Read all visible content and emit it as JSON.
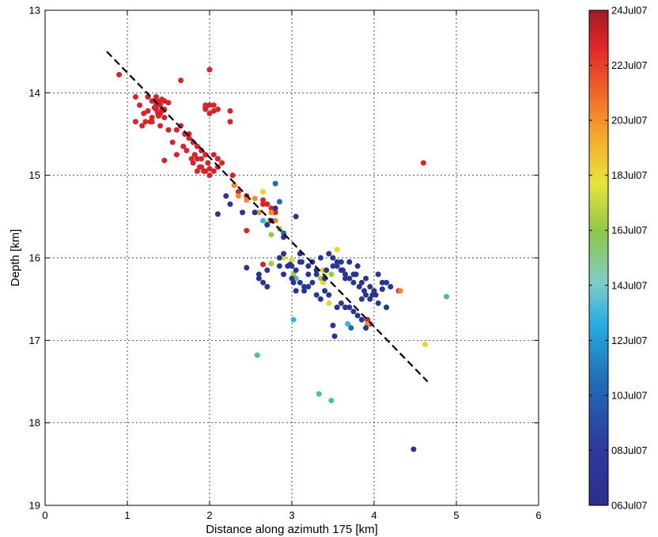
{
  "chart_data": {
    "type": "scatter",
    "xlabel": "Distance along azimuth 175  [km]",
    "ylabel": "Depth [km]",
    "xlim": [
      0,
      6
    ],
    "ylim": [
      13,
      19
    ],
    "y_reversed": true,
    "xticks": [
      "0",
      "1",
      "2",
      "3",
      "4",
      "5",
      "6"
    ],
    "yticks": [
      "13",
      "14",
      "15",
      "16",
      "17",
      "18",
      "19"
    ],
    "grid": true,
    "trend_line": {
      "style": "dashed",
      "color": "#000000",
      "x": [
        0.75,
        4.65
      ],
      "y": [
        13.5,
        17.5
      ]
    },
    "colorbar": {
      "placement": "right",
      "labels": [
        "06Jul07",
        "08Jul07",
        "10Jul07",
        "12Jul07",
        "14Jul07",
        "16Jul07",
        "18Jul07",
        "20Jul07",
        "22Jul07",
        "24Jul07"
      ],
      "colormap": "jet"
    },
    "series": [
      {
        "x": [
          0.9,
          1.1,
          1.25,
          1.15,
          1.2,
          1.3,
          1.35,
          1.4,
          1.45,
          1.35,
          1.3,
          1.4,
          1.45,
          1.5,
          1.38,
          1.42,
          1.28,
          1.22,
          1.1,
          1.18,
          1.3,
          1.4,
          1.5,
          1.45,
          1.35,
          1.6,
          1.65,
          1.7,
          1.75,
          1.8,
          1.75,
          1.68,
          1.55,
          1.6,
          1.72,
          1.85,
          1.9,
          1.95,
          1.85,
          1.8,
          1.9,
          1.98,
          1.7,
          1.95,
          2.0,
          2.05,
          1.95,
          2.1,
          2.0,
          1.88,
          2.05,
          2.1,
          1.93,
          1.9,
          1.82,
          1.78,
          1.85,
          2.0,
          1.98,
          2.1,
          2.05,
          2.1,
          2.15,
          2.0,
          1.95,
          1.65,
          1.45,
          2.0,
          1.95,
          2.05,
          2.25,
          2.3,
          4.6,
          2.28,
          2.35,
          2.25,
          2.7,
          2.45,
          2.55,
          2.65,
          2.75,
          2.8,
          2.65,
          2.45,
          2.65,
          3.95,
          4.3,
          3.92,
          1.4,
          1.42,
          1.37,
          1.33,
          1.25,
          1.35,
          1.42
        ],
        "y": [
          13.78,
          14.05,
          14.05,
          14.15,
          14.25,
          14.1,
          14.2,
          14.15,
          14.1,
          14.05,
          14.3,
          14.25,
          14.2,
          14.12,
          14.28,
          14.22,
          14.35,
          14.35,
          14.35,
          14.4,
          14.35,
          14.4,
          14.45,
          14.3,
          14.1,
          14.45,
          14.4,
          14.5,
          14.55,
          14.6,
          14.5,
          14.65,
          14.6,
          14.75,
          14.7,
          14.65,
          14.7,
          14.75,
          14.8,
          14.85,
          14.9,
          14.85,
          14.5,
          14.2,
          14.15,
          14.15,
          14.15,
          14.2,
          14.25,
          14.9,
          14.95,
          14.8,
          14.95,
          14.8,
          14.75,
          14.8,
          14.95,
          15.0,
          14.85,
          14.9,
          14.75,
          14.8,
          14.85,
          14.92,
          14.95,
          13.85,
          14.82,
          13.72,
          14.18,
          14.22,
          14.35,
          15.12,
          14.85,
          15.0,
          15.2,
          14.22,
          15.35,
          15.25,
          15.45,
          15.3,
          15.4,
          15.45,
          15.35,
          15.67,
          16.08,
          16.8,
          16.4,
          16.75,
          14.1,
          14.2,
          14.25,
          14.18,
          14.22,
          14.15,
          14.08
        ],
        "color": "#d7232a"
      },
      {
        "x": [
          2.3,
          2.35,
          2.45,
          2.55,
          2.6,
          2.75,
          2.8,
          4.32,
          3.92
        ],
        "y": [
          15.12,
          15.25,
          15.3,
          15.28,
          15.45,
          15.45,
          15.55,
          16.4,
          16.8
        ],
        "color": "#f08b2a"
      },
      {
        "x": [
          2.65,
          2.72,
          2.85,
          3.55,
          3.38,
          3.45,
          4.62,
          3.38,
          3.4,
          2.9,
          3.0
        ],
        "y": [
          15.2,
          15.55,
          15.65,
          15.9,
          16.15,
          16.55,
          17.05,
          16.3,
          16.22,
          16.0,
          16.03
        ],
        "color": "#f2d12a"
      },
      {
        "x": [
          2.75,
          2.85,
          2.75,
          3.35,
          3.48,
          3.02
        ],
        "y": [
          15.72,
          15.65,
          16.07,
          16.25,
          16.2,
          16.2
        ],
        "color": "#9ccb3c"
      },
      {
        "x": [
          2.58,
          3.33,
          3.48,
          4.88,
          3.05
        ],
        "y": [
          17.18,
          17.65,
          17.73,
          16.47,
          16.25
        ],
        "color": "#4fbf9f"
      },
      {
        "x": [
          2.65,
          3.02,
          3.68
        ],
        "y": [
          15.55,
          16.75,
          16.8
        ],
        "color": "#34b4e8"
      },
      {
        "x": [
          2.8,
          2.85,
          2.9,
          3.72
        ],
        "y": [
          15.1,
          15.32,
          15.7,
          16.85
        ],
        "color": "#1e6cb4"
      },
      {
        "x": [
          2.1,
          2.2,
          2.25,
          2.4,
          2.55,
          2.7,
          2.75,
          2.8,
          2.9,
          3.05,
          3.1,
          3.2,
          3.3,
          3.35,
          3.45,
          3.5,
          3.55,
          3.6,
          3.65,
          3.7,
          3.75,
          3.8,
          3.85,
          3.9,
          3.95,
          4.0,
          4.05,
          4.1,
          4.15,
          4.2,
          3.12,
          2.95,
          2.85,
          2.9,
          2.6,
          2.65,
          2.7,
          3.0,
          3.05,
          3.1,
          3.2,
          3.25,
          3.4,
          3.42,
          3.5,
          3.55,
          3.6,
          3.62,
          3.65,
          3.7,
          3.75,
          3.78,
          3.82,
          3.85,
          3.88,
          3.9,
          3.95,
          3.98,
          4.02,
          4.05,
          4.1,
          3.25,
          3.3,
          3.15,
          3.05,
          3.6,
          3.7,
          3.75,
          3.8,
          3.85,
          3.9,
          3.5,
          4.15,
          4.48,
          3.52,
          2.85,
          2.9,
          3.0,
          3.1,
          3.15,
          3.2,
          3.3,
          3.35,
          3.4,
          3.45,
          3.55,
          3.65,
          2.6,
          2.7,
          2.45,
          2.98,
          3.02
        ],
        "y": [
          15.47,
          15.25,
          15.35,
          15.45,
          15.45,
          15.6,
          15.55,
          15.4,
          15.75,
          15.5,
          15.95,
          16.1,
          16.15,
          16.0,
          15.95,
          16.1,
          16.05,
          16.15,
          16.25,
          16.05,
          16.2,
          16.1,
          16.3,
          16.25,
          16.35,
          16.4,
          16.2,
          16.3,
          16.3,
          16.35,
          16.05,
          16.1,
          16.0,
          15.95,
          16.25,
          16.3,
          16.35,
          16.1,
          16.15,
          16.05,
          16.2,
          16.3,
          16.25,
          16.15,
          16.0,
          16.1,
          16.05,
          16.15,
          16.2,
          16.25,
          16.3,
          16.2,
          16.35,
          16.5,
          16.4,
          16.45,
          16.5,
          16.45,
          16.45,
          16.55,
          16.38,
          16.05,
          16.2,
          16.35,
          16.4,
          16.55,
          16.6,
          16.65,
          16.7,
          16.75,
          16.85,
          16.82,
          16.6,
          18.32,
          16.95,
          16.1,
          16.2,
          16.25,
          16.3,
          16.4,
          16.35,
          16.45,
          16.5,
          16.4,
          16.45,
          16.6,
          16.6,
          16.2,
          16.15,
          16.12,
          16.08,
          16.3
        ],
        "color": "#283593"
      }
    ]
  }
}
